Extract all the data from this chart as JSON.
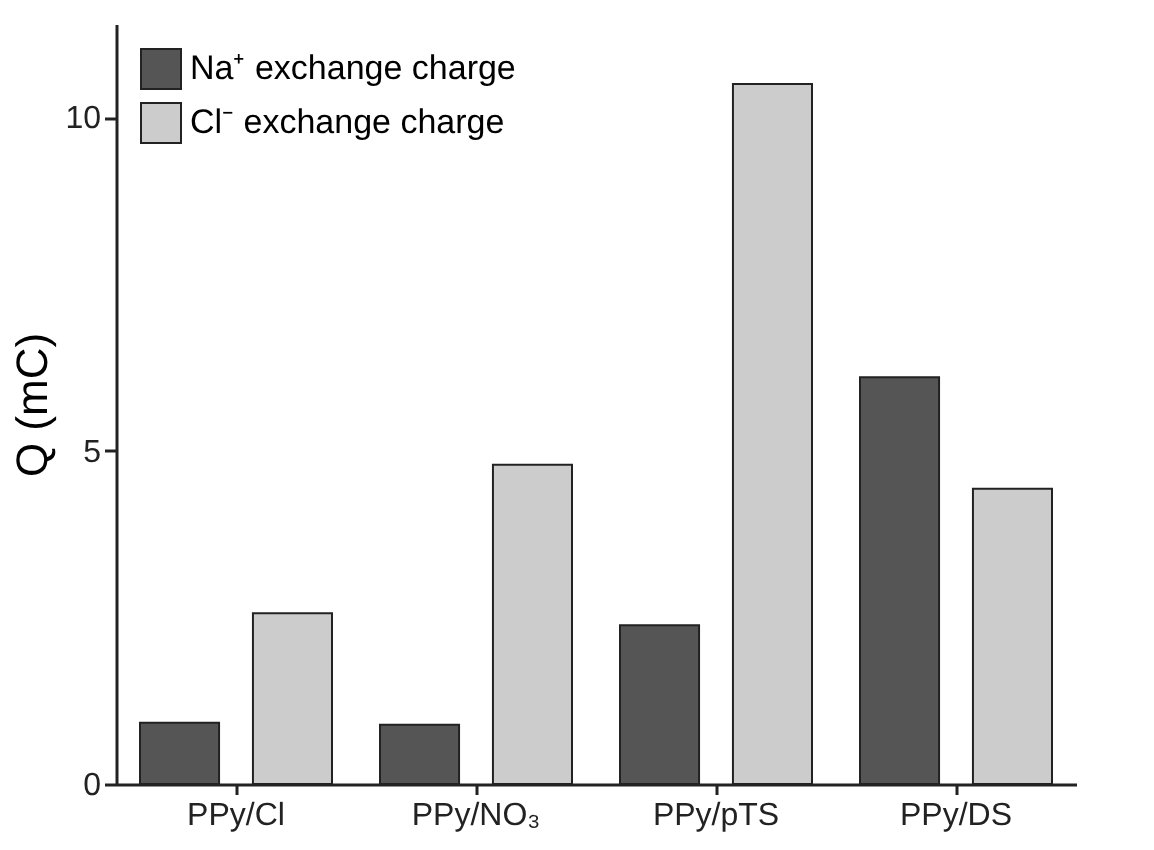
{
  "chart_data": {
    "type": "bar",
    "ylabel": "Q (mC)",
    "categories": [
      "PPy/Cl",
      "PPy/NO₃",
      "PPy/pTS",
      "PPy/DS"
    ],
    "series": [
      {
        "name": "Na⁺ exchange charge",
        "color": "#555555",
        "values": [
          0.92,
          0.89,
          2.38,
          6.1
        ]
      },
      {
        "name": "Cl⁻ exchange charge",
        "color": "#cccccc",
        "values": [
          2.56,
          4.79,
          10.5,
          4.43
        ]
      }
    ],
    "ylim": [
      0,
      11.4
    ],
    "yticks": [
      0,
      5,
      10
    ],
    "grid": false,
    "legend": "top left"
  }
}
